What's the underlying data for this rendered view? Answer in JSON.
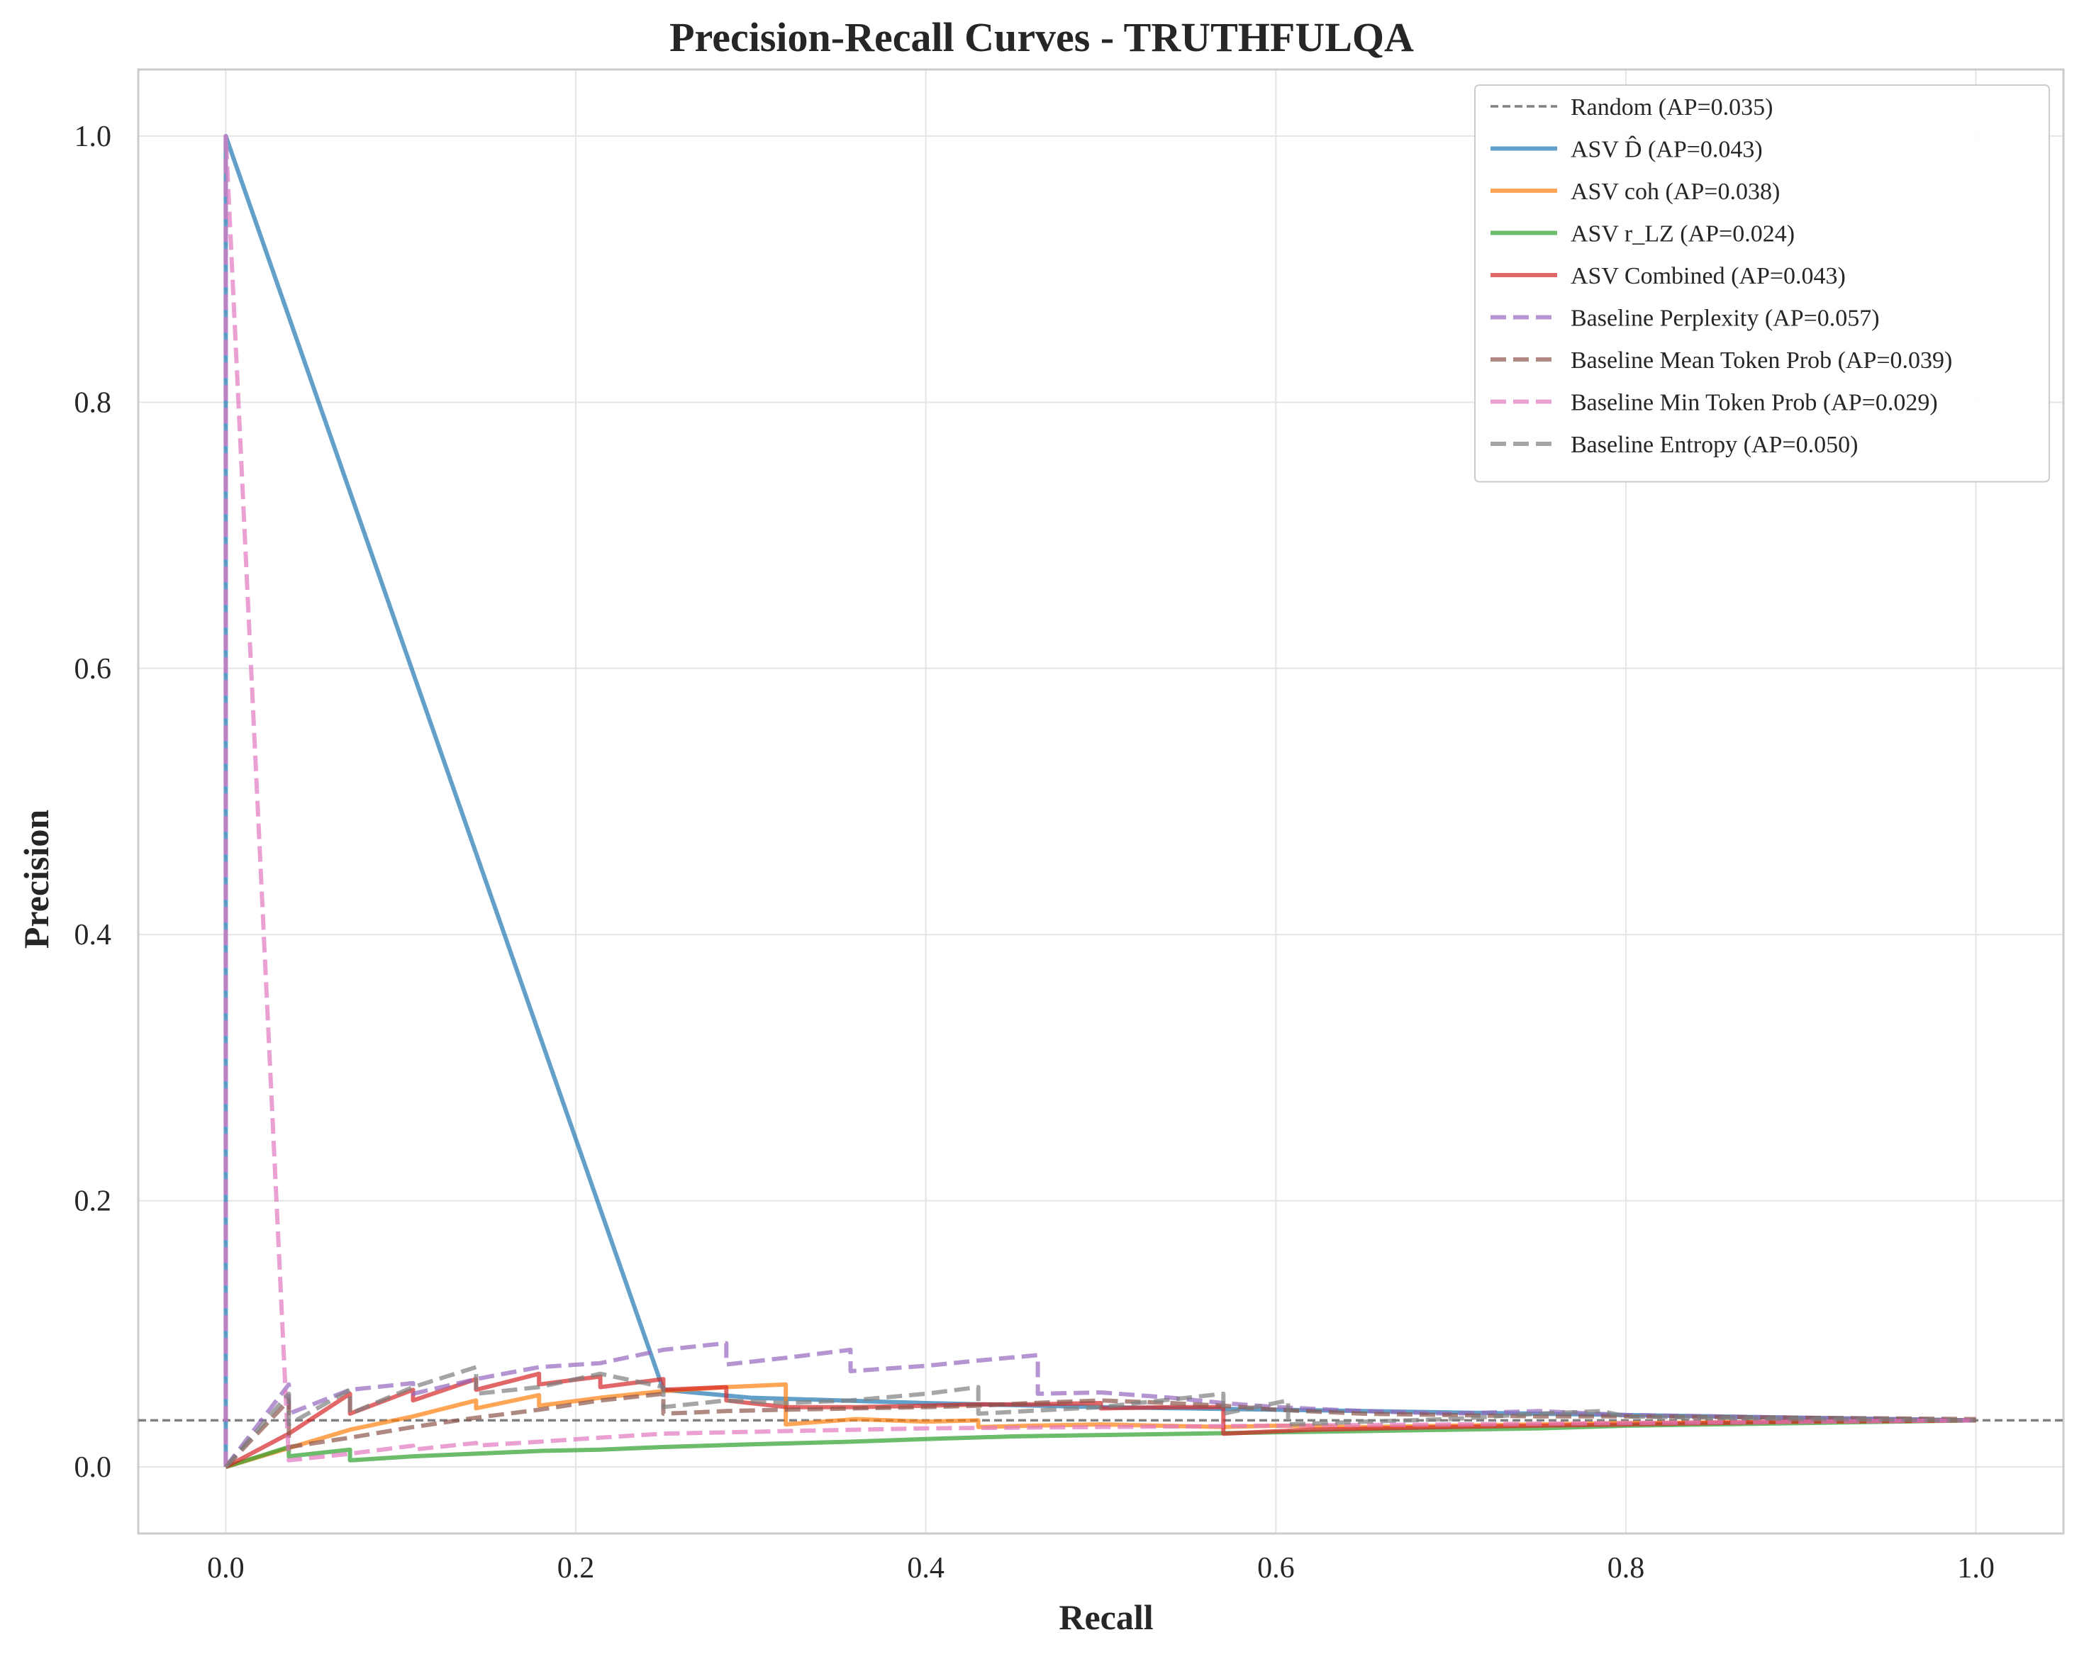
{
  "chart_data": {
    "type": "line",
    "title": "Precision-Recall Curves - TRUTHFULQA",
    "xlabel": "Recall",
    "ylabel": "Precision",
    "xlim": [
      -0.05,
      1.05
    ],
    "ylim": [
      -0.05,
      1.05
    ],
    "xticks": [
      0.0,
      0.2,
      0.4,
      0.6,
      0.8,
      1.0
    ],
    "yticks": [
      0.0,
      0.2,
      0.4,
      0.6,
      0.8,
      1.0
    ],
    "xtick_labels": [
      "0.0",
      "0.2",
      "0.4",
      "0.6",
      "0.8",
      "1.0"
    ],
    "ytick_labels": [
      "0.0",
      "0.2",
      "0.4",
      "0.6",
      "0.8",
      "1.0"
    ],
    "grid": true,
    "legend_position": "top-right",
    "series": [
      {
        "name": "Random (AP=0.035)",
        "color": "#808080",
        "style": "dashed-thin",
        "x": [
          -0.05,
          1.05
        ],
        "y": [
          0.035,
          0.035
        ]
      },
      {
        "name": "ASV D̂ (AP=0.043)",
        "color": "#1f77b4",
        "style": "solid",
        "x": [
          0.0,
          0.0,
          0.25,
          0.3,
          0.4,
          0.5,
          0.6,
          0.7,
          0.8,
          0.9,
          1.0
        ],
        "y": [
          0.0,
          1.0,
          0.058,
          0.052,
          0.048,
          0.045,
          0.043,
          0.041,
          0.039,
          0.037,
          0.035
        ]
      },
      {
        "name": "ASV coh (AP=0.038)",
        "color": "#ff7f0e",
        "style": "solid",
        "x": [
          0.0,
          0.0,
          0.071,
          0.107,
          0.143,
          0.143,
          0.179,
          0.179,
          0.214,
          0.25,
          0.286,
          0.32,
          0.32,
          0.36,
          0.4,
          0.43,
          0.43,
          0.46,
          0.5,
          0.57,
          0.6,
          0.65,
          0.7,
          0.75,
          0.8,
          0.9,
          1.0
        ],
        "y": [
          0.0,
          0.0,
          0.028,
          0.038,
          0.05,
          0.044,
          0.054,
          0.046,
          0.052,
          0.057,
          0.06,
          0.062,
          0.032,
          0.036,
          0.034,
          0.035,
          0.03,
          0.031,
          0.032,
          0.03,
          0.031,
          0.03,
          0.031,
          0.032,
          0.033,
          0.034,
          0.035
        ]
      },
      {
        "name": "ASV r_LZ (AP=0.024)",
        "color": "#2ca02c",
        "style": "solid",
        "x": [
          0.0,
          0.0,
          0.036,
          0.036,
          0.071,
          0.071,
          0.107,
          0.143,
          0.179,
          0.214,
          0.25,
          0.3,
          0.357,
          0.4,
          0.45,
          0.5,
          0.55,
          0.6,
          0.65,
          0.7,
          0.75,
          0.8,
          0.9,
          1.0
        ],
        "y": [
          0.0,
          0.0,
          0.015,
          0.008,
          0.013,
          0.005,
          0.008,
          0.01,
          0.012,
          0.013,
          0.015,
          0.017,
          0.019,
          0.021,
          0.023,
          0.024,
          0.025,
          0.026,
          0.027,
          0.028,
          0.029,
          0.031,
          0.033,
          0.035
        ]
      },
      {
        "name": "ASV Combined (AP=0.043)",
        "color": "#d62728",
        "style": "solid",
        "x": [
          0.0,
          0.0,
          0.036,
          0.071,
          0.071,
          0.107,
          0.107,
          0.143,
          0.143,
          0.179,
          0.179,
          0.214,
          0.214,
          0.25,
          0.25,
          0.286,
          0.286,
          0.32,
          0.36,
          0.4,
          0.43,
          0.46,
          0.5,
          0.5,
          0.54,
          0.57,
          0.57,
          0.62,
          0.7,
          0.8,
          0.9,
          1.0
        ],
        "y": [
          0.0,
          0.0,
          0.025,
          0.055,
          0.04,
          0.058,
          0.05,
          0.066,
          0.058,
          0.07,
          0.062,
          0.068,
          0.06,
          0.066,
          0.058,
          0.06,
          0.05,
          0.045,
          0.045,
          0.046,
          0.047,
          0.047,
          0.048,
          0.044,
          0.045,
          0.045,
          0.025,
          0.028,
          0.03,
          0.032,
          0.034,
          0.035
        ]
      },
      {
        "name": "Baseline Perplexity (AP=0.057)",
        "color": "#9467bd",
        "style": "dashed",
        "x": [
          0.0,
          0.0,
          0.036,
          0.036,
          0.071,
          0.107,
          0.107,
          0.143,
          0.179,
          0.214,
          0.25,
          0.286,
          0.286,
          0.32,
          0.357,
          0.357,
          0.4,
          0.43,
          0.464,
          0.464,
          0.5,
          0.54,
          0.57,
          0.6,
          0.65,
          0.7,
          0.75,
          0.8,
          0.9,
          1.0
        ],
        "y": [
          0.0,
          0.0,
          0.062,
          0.04,
          0.058,
          0.063,
          0.055,
          0.066,
          0.075,
          0.078,
          0.088,
          0.093,
          0.077,
          0.082,
          0.088,
          0.072,
          0.076,
          0.08,
          0.084,
          0.055,
          0.056,
          0.052,
          0.048,
          0.045,
          0.042,
          0.04,
          0.042,
          0.039,
          0.037,
          0.035
        ]
      },
      {
        "name": "Baseline Mean Token Prob (AP=0.039)",
        "color": "#8c564b",
        "style": "dashed",
        "x": [
          0.0,
          0.0,
          0.036,
          0.036,
          0.071,
          0.107,
          0.143,
          0.179,
          0.214,
          0.25,
          0.25,
          0.286,
          0.32,
          0.36,
          0.4,
          0.43,
          0.46,
          0.5,
          0.54,
          0.57,
          0.6,
          0.65,
          0.7,
          0.75,
          0.8,
          0.9,
          1.0
        ],
        "y": [
          0.0,
          0.0,
          0.05,
          0.015,
          0.022,
          0.03,
          0.037,
          0.043,
          0.05,
          0.055,
          0.04,
          0.042,
          0.043,
          0.044,
          0.045,
          0.046,
          0.048,
          0.05,
          0.048,
          0.046,
          0.043,
          0.04,
          0.039,
          0.038,
          0.038,
          0.037,
          0.036
        ]
      },
      {
        "name": "Baseline Min Token Prob (AP=0.029)",
        "color": "#e377c2",
        "style": "dashed",
        "x": [
          0.0,
          0.0,
          0.036,
          0.071,
          0.107,
          0.107,
          0.143,
          0.143,
          0.179,
          0.214,
          0.25,
          0.32,
          0.4,
          0.5,
          0.6,
          0.7,
          0.8,
          0.9,
          1.0
        ],
        "y": [
          0.0,
          1.0,
          0.005,
          0.01,
          0.016,
          0.013,
          0.018,
          0.016,
          0.019,
          0.022,
          0.025,
          0.027,
          0.029,
          0.03,
          0.031,
          0.032,
          0.033,
          0.034,
          0.035
        ]
      },
      {
        "name": "Baseline Entropy (AP=0.050)",
        "color": "#7f7f7f",
        "style": "dashed",
        "x": [
          0.0,
          0.0,
          0.036,
          0.036,
          0.071,
          0.071,
          0.107,
          0.143,
          0.143,
          0.179,
          0.214,
          0.25,
          0.25,
          0.286,
          0.32,
          0.357,
          0.4,
          0.43,
          0.43,
          0.5,
          0.57,
          0.57,
          0.607,
          0.607,
          0.65,
          0.7,
          0.75,
          0.786,
          0.8,
          0.9,
          1.0
        ],
        "y": [
          0.0,
          0.0,
          0.055,
          0.032,
          0.058,
          0.04,
          0.06,
          0.075,
          0.055,
          0.06,
          0.07,
          0.06,
          0.045,
          0.05,
          0.048,
          0.05,
          0.055,
          0.06,
          0.04,
          0.045,
          0.055,
          0.04,
          0.05,
          0.032,
          0.034,
          0.036,
          0.04,
          0.042,
          0.038,
          0.036,
          0.035
        ]
      }
    ]
  }
}
